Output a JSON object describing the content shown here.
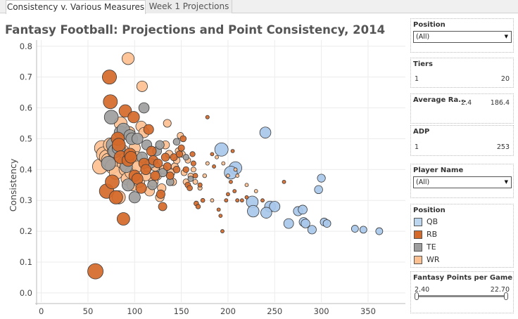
{
  "tabs": [
    {
      "label": "Consistency v. Various Measures",
      "active": true
    },
    {
      "label": "Week 1 Projections",
      "active": false
    }
  ],
  "title": "Fantasy Football: Projections and Point Consistency, 2014",
  "chart_data": {
    "type": "scatter",
    "xlabel": "",
    "ylabel": "Consistency",
    "xlim": [
      -5,
      390
    ],
    "ylim": [
      -0.03,
      0.82
    ],
    "xticks": [
      "0",
      "50",
      "100",
      "150",
      "200",
      "250",
      "300",
      "350"
    ],
    "yticks": [
      "0.0",
      "0.1",
      "0.2",
      "0.3",
      "0.4",
      "0.5",
      "0.6",
      "0.7",
      "0.8"
    ],
    "size_by": "Fantasy Points per Game",
    "series": [
      {
        "name": "QB",
        "color": "#a8c8ea",
        "points": [
          [
            193,
            0.465
          ],
          [
            208,
            0.405
          ],
          [
            203,
            0.39
          ],
          [
            240,
            0.52
          ],
          [
            226,
            0.295
          ],
          [
            227,
            0.265
          ],
          [
            245,
            0.28
          ],
          [
            250,
            0.28
          ],
          [
            241,
            0.26
          ],
          [
            265,
            0.225
          ],
          [
            275,
            0.265
          ],
          [
            280,
            0.27
          ],
          [
            281,
            0.23
          ],
          [
            283,
            0.225
          ],
          [
            290,
            0.205
          ],
          [
            300,
            0.372
          ],
          [
            297,
            0.335
          ],
          [
            303,
            0.23
          ],
          [
            306,
            0.225
          ],
          [
            336,
            0.208
          ],
          [
            345,
            0.205
          ],
          [
            362,
            0.2
          ]
        ]
      },
      {
        "name": "RB",
        "color": "#d4692a",
        "points": [
          [
            58,
            0.07
          ],
          [
            73,
            0.7
          ],
          [
            74,
            0.62
          ],
          [
            70,
            0.33
          ],
          [
            76,
            0.36
          ],
          [
            80,
            0.31
          ],
          [
            82,
            0.5
          ],
          [
            83,
            0.48
          ],
          [
            85,
            0.44
          ],
          [
            88,
            0.24
          ],
          [
            90,
            0.59
          ],
          [
            93,
            0.43
          ],
          [
            95,
            0.45
          ],
          [
            96,
            0.44
          ],
          [
            99,
            0.57
          ],
          [
            100,
            0.38
          ],
          [
            103,
            0.37
          ],
          [
            107,
            0.34
          ],
          [
            110,
            0.42
          ],
          [
            112,
            0.4
          ],
          [
            115,
            0.53
          ],
          [
            118,
            0.46
          ],
          [
            120,
            0.43
          ],
          [
            122,
            0.38
          ],
          [
            125,
            0.42
          ],
          [
            128,
            0.32
          ],
          [
            130,
            0.28
          ],
          [
            133,
            0.44
          ],
          [
            135,
            0.41
          ],
          [
            138,
            0.38
          ],
          [
            142,
            0.44
          ],
          [
            145,
            0.4
          ],
          [
            148,
            0.45
          ],
          [
            150,
            0.47
          ],
          [
            152,
            0.5
          ],
          [
            155,
            0.4
          ],
          [
            157,
            0.35
          ],
          [
            159,
            0.34
          ],
          [
            162,
            0.45
          ],
          [
            163,
            0.42
          ],
          [
            165,
            0.38
          ],
          [
            166,
            0.29
          ],
          [
            168,
            0.28
          ],
          [
            170,
            0.35
          ],
          [
            173,
            0.3
          ],
          [
            178,
            0.57
          ],
          [
            183,
            0.45
          ],
          [
            185,
            0.41
          ],
          [
            190,
            0.27
          ],
          [
            192,
            0.25
          ],
          [
            194,
            0.2
          ],
          [
            198,
            0.3
          ],
          [
            200,
            0.32
          ],
          [
            203,
            0.36
          ],
          [
            205,
            0.46
          ],
          [
            207,
            0.33
          ],
          [
            210,
            0.3
          ],
          [
            215,
            0.3
          ],
          [
            220,
            0.31
          ],
          [
            237,
            0.3
          ],
          [
            260,
            0.36
          ]
        ]
      },
      {
        "name": "TE",
        "color": "#9e9e9e",
        "points": [
          [
            72,
            0.42
          ],
          [
            75,
            0.57
          ],
          [
            77,
            0.48
          ],
          [
            79,
            0.46
          ],
          [
            83,
            0.47
          ],
          [
            85,
            0.52
          ],
          [
            88,
            0.53
          ],
          [
            91,
            0.41
          ],
          [
            93,
            0.35
          ],
          [
            95,
            0.51
          ],
          [
            97,
            0.5
          ],
          [
            100,
            0.31
          ],
          [
            103,
            0.5
          ],
          [
            108,
            0.44
          ],
          [
            110,
            0.6
          ],
          [
            113,
            0.48
          ],
          [
            117,
            0.42
          ],
          [
            119,
            0.35
          ],
          [
            124,
            0.46
          ],
          [
            127,
            0.48
          ],
          [
            130,
            0.39
          ],
          [
            138,
            0.36
          ],
          [
            145,
            0.49
          ],
          [
            155,
            0.44
          ],
          [
            160,
            0.37
          ]
        ]
      },
      {
        "name": "WR",
        "color": "#fdc090",
        "points": [
          [
            63,
            0.41
          ],
          [
            65,
            0.47
          ],
          [
            67,
            0.45
          ],
          [
            70,
            0.44
          ],
          [
            72,
            0.43
          ],
          [
            74,
            0.48
          ],
          [
            76,
            0.41
          ],
          [
            78,
            0.46
          ],
          [
            80,
            0.39
          ],
          [
            83,
            0.31
          ],
          [
            85,
            0.55
          ],
          [
            87,
            0.46
          ],
          [
            88,
            0.42
          ],
          [
            90,
            0.4
          ],
          [
            92,
            0.37
          ],
          [
            93,
            0.76
          ],
          [
            94,
            0.52
          ],
          [
            96,
            0.39
          ],
          [
            98,
            0.35
          ],
          [
            100,
            0.47
          ],
          [
            102,
            0.44
          ],
          [
            103,
            0.41
          ],
          [
            105,
            0.36
          ],
          [
            107,
            0.54
          ],
          [
            108,
            0.67
          ],
          [
            110,
            0.52
          ],
          [
            112,
            0.38
          ],
          [
            114,
            0.41
          ],
          [
            116,
            0.33
          ],
          [
            118,
            0.42
          ],
          [
            120,
            0.36
          ],
          [
            122,
            0.41
          ],
          [
            124,
            0.38
          ],
          [
            127,
            0.31
          ],
          [
            129,
            0.34
          ],
          [
            131,
            0.4
          ],
          [
            133,
            0.48
          ],
          [
            135,
            0.55
          ],
          [
            137,
            0.45
          ],
          [
            139,
            0.39
          ],
          [
            141,
            0.36
          ],
          [
            143,
            0.41
          ],
          [
            145,
            0.43
          ],
          [
            147,
            0.46
          ],
          [
            149,
            0.51
          ],
          [
            151,
            0.45
          ],
          [
            153,
            0.39
          ],
          [
            155,
            0.36
          ],
          [
            157,
            0.43
          ],
          [
            160,
            0.38
          ],
          [
            163,
            0.4
          ],
          [
            165,
            0.36
          ],
          [
            170,
            0.34
          ],
          [
            175,
            0.38
          ],
          [
            178,
            0.42
          ],
          [
            183,
            0.3
          ],
          [
            188,
            0.44
          ],
          [
            195,
            0.42
          ],
          [
            200,
            0.38
          ],
          [
            208,
            0.4
          ],
          [
            210,
            0.38
          ],
          [
            220,
            0.35
          ],
          [
            230,
            0.33
          ]
        ]
      }
    ]
  },
  "filters": {
    "position_filter": {
      "title": "Position",
      "value": "(All)"
    },
    "tiers": {
      "title": "Tiers",
      "min": "1",
      "max": "20"
    },
    "avg_rank": {
      "title": "Average Ra...",
      "min": "2.4",
      "max": "186.4"
    },
    "adp": {
      "title": "ADP",
      "min": "1",
      "max": "253"
    },
    "player_name": {
      "title": "Player Name",
      "value": "(All)"
    },
    "legend": {
      "title": "Position",
      "items": [
        {
          "label": "QB",
          "color": "#bcd6f0"
        },
        {
          "label": "RB",
          "color": "#d4692a"
        },
        {
          "label": "TE",
          "color": "#9e9e9e"
        },
        {
          "label": "WR",
          "color": "#fdc090"
        }
      ]
    },
    "fppg": {
      "title": "Fantasy Points per Game",
      "min": "2.40",
      "max": "22.70",
      "low_fraction": 0,
      "high_fraction": 1
    }
  }
}
